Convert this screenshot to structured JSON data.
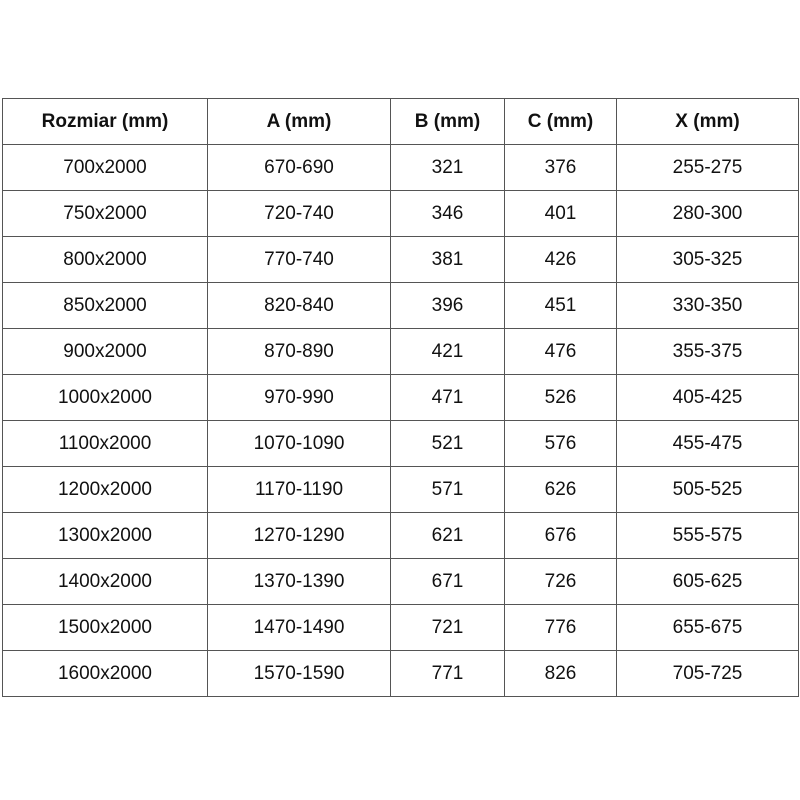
{
  "table": {
    "headers": [
      "Rozmiar (mm)",
      "A (mm)",
      "B (mm)",
      "C (mm)",
      "X (mm)"
    ],
    "rows": [
      [
        "700x2000",
        "670-690",
        "321",
        "376",
        "255-275"
      ],
      [
        "750x2000",
        "720-740",
        "346",
        "401",
        "280-300"
      ],
      [
        "800x2000",
        "770-740",
        "381",
        "426",
        "305-325"
      ],
      [
        "850x2000",
        "820-840",
        "396",
        "451",
        "330-350"
      ],
      [
        "900x2000",
        "870-890",
        "421",
        "476",
        "355-375"
      ],
      [
        "1000x2000",
        "970-990",
        "471",
        "526",
        "405-425"
      ],
      [
        "1100x2000",
        "1070-1090",
        "521",
        "576",
        "455-475"
      ],
      [
        "1200x2000",
        "1170-1190",
        "571",
        "626",
        "505-525"
      ],
      [
        "1300x2000",
        "1270-1290",
        "621",
        "676",
        "555-575"
      ],
      [
        "1400x2000",
        "1370-1390",
        "671",
        "726",
        "605-625"
      ],
      [
        "1500x2000",
        "1470-1490",
        "721",
        "776",
        "655-675"
      ],
      [
        "1600x2000",
        "1570-1590",
        "771",
        "826",
        "705-725"
      ]
    ]
  }
}
